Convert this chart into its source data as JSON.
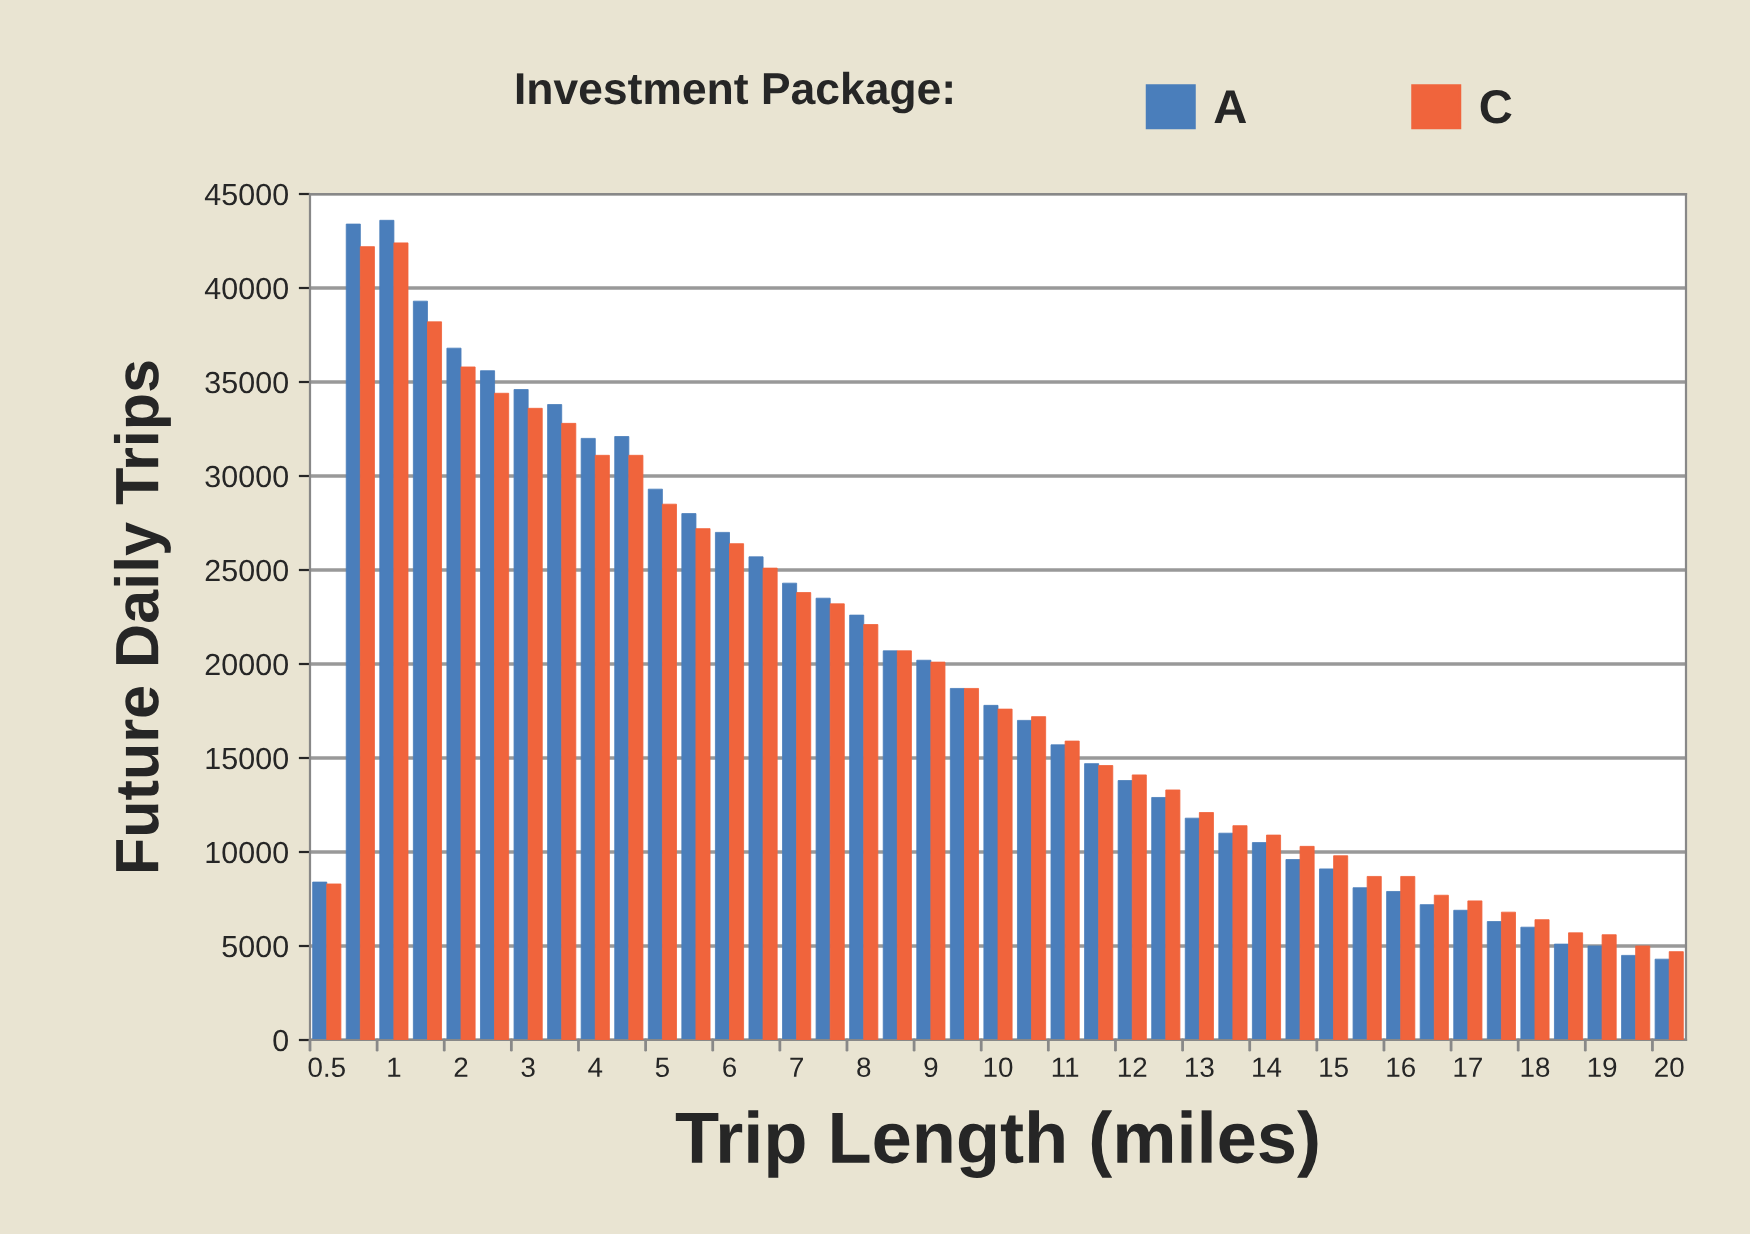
{
  "chart_data": {
    "type": "bar",
    "xlabel": "Trip Length (miles)",
    "ylabel": "Future Daily Trips",
    "legend_title": "Investment Package:",
    "categories": [
      "0.5",
      null,
      "1",
      null,
      "2",
      null,
      "3",
      null,
      "4",
      null,
      "5",
      null,
      "6",
      null,
      "7",
      null,
      "8",
      null,
      "9",
      null,
      "10",
      null,
      "11",
      null,
      "12",
      null,
      "13",
      null,
      "14",
      null,
      "15",
      null,
      "16",
      null,
      "17",
      null,
      "18",
      null,
      "19",
      null,
      "20"
    ],
    "series": [
      {
        "name": "A",
        "color": "#4a7ebb",
        "values": [
          8400,
          43400,
          43600,
          39300,
          36800,
          35600,
          34600,
          33800,
          32000,
          32100,
          29300,
          28000,
          27000,
          25700,
          24300,
          23500,
          22600,
          20700,
          20200,
          18700,
          17800,
          17000,
          15700,
          14700,
          13800,
          12900,
          11800,
          11000,
          10500,
          9600,
          9100,
          8100,
          7900,
          7200,
          6900,
          6300,
          6000,
          5100,
          5000,
          4500,
          4300
        ]
      },
      {
        "name": "C",
        "color": "#f0643c",
        "values": [
          8300,
          42200,
          42400,
          38200,
          35800,
          34400,
          33600,
          32800,
          31100,
          31100,
          28500,
          27200,
          26400,
          25100,
          23800,
          23200,
          22100,
          20700,
          20100,
          18700,
          17600,
          17200,
          15900,
          14600,
          14100,
          13300,
          12100,
          11400,
          10900,
          10300,
          9800,
          8700,
          8700,
          7700,
          7400,
          6800,
          6400,
          5700,
          5600,
          5000,
          4700
        ]
      }
    ],
    "ylim": [
      0,
      45000
    ],
    "yticks": [
      0,
      5000,
      10000,
      15000,
      20000,
      25000,
      30000,
      35000,
      40000,
      45000
    ],
    "grid": "y",
    "legend": "top"
  }
}
